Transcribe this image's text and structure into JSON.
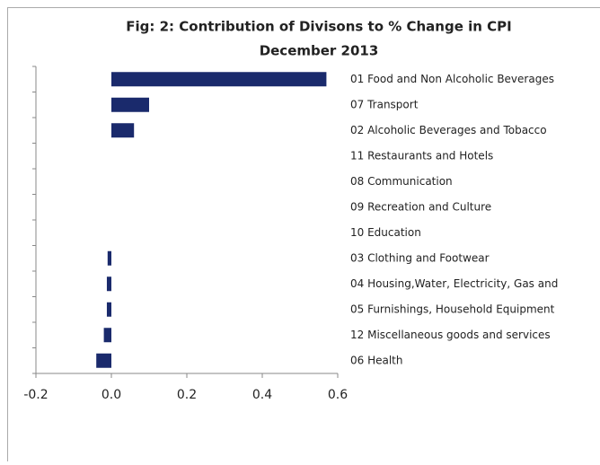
{
  "chart_data": {
    "type": "barh",
    "title": "Fig: 2: Contribution of Divisons to % Change in CPI",
    "subtitle": "December 2013",
    "categories": [
      "01 Food and Non Alcoholic Beverages",
      "07 Transport",
      "02 Alcoholic Beverages and Tobacco",
      "11 Restaurants and Hotels",
      "08 Communication",
      "09 Recreation and Culture",
      "10 Education",
      "03 Clothing and Footwear",
      "04 Housing,Water, Electricity, Gas and",
      "05 Furnishings, Household Equipment",
      "12 Miscellaneous goods and services",
      "06 Health"
    ],
    "values": [
      0.57,
      0.1,
      0.06,
      0,
      0,
      0,
      0,
      -0.01,
      -0.012,
      -0.012,
      -0.02,
      -0.04
    ],
    "color": "#1a2a6c",
    "xlim": [
      -0.2,
      0.6
    ],
    "xticks": [
      -0.2,
      {
        "value": 0,
        "label": "0.0"
      },
      0.2,
      0.4,
      0.6
    ]
  }
}
